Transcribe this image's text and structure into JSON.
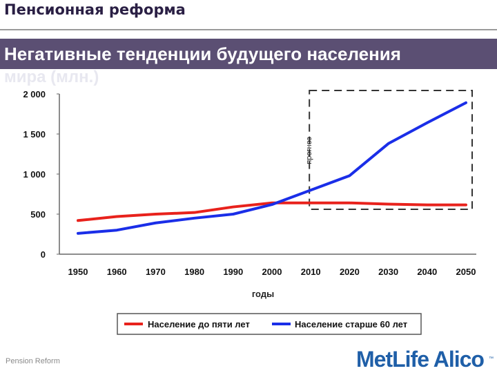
{
  "header": {
    "section_title": "Пенсионная реформа",
    "slide_title": "Негативные тенденции будущего населения",
    "slide_title_line2": "мира (млн.)"
  },
  "footer": {
    "text": "Pension Reform",
    "logo_text": "MetLife Alico",
    "logo_tm": "™"
  },
  "colors": {
    "series_red": "#e8221c",
    "series_blue": "#1a2ee8",
    "title_bar": "#5b4f73",
    "logo": "#1f5fa8"
  },
  "chart_data": {
    "type": "line",
    "xlabel": "годы",
    "ylabel": "",
    "ylim": [
      0,
      2000
    ],
    "xlim": [
      1950,
      2050
    ],
    "yticks": [
      0,
      500,
      1000,
      1500,
      2000
    ],
    "ytick_labels": [
      "0",
      "500",
      "1 000",
      "1 500",
      "2 000"
    ],
    "xticks": [
      1950,
      1960,
      1970,
      1980,
      1990,
      2000,
      2010,
      2020,
      2030,
      2040,
      2050
    ],
    "xtick_labels": [
      "1950",
      "1960",
      "1970",
      "1980",
      "1990",
      "2000",
      "2010",
      "2020",
      "2030",
      "2040",
      "2050"
    ],
    "forecast_label": "прогноз",
    "forecast_range": [
      2010,
      2050
    ],
    "legend_position": "bottom",
    "series": [
      {
        "name": "Население до пяти лет",
        "color": "#e8221c",
        "x": [
          1950,
          1960,
          1970,
          1980,
          1990,
          2000,
          2010,
          2020,
          2030,
          2040,
          2050
        ],
        "y": [
          420,
          470,
          500,
          520,
          590,
          640,
          640,
          640,
          625,
          615,
          615
        ]
      },
      {
        "name": "Население старше 60 лет",
        "color": "#1a2ee8",
        "x": [
          1950,
          1960,
          1970,
          1980,
          1990,
          2000,
          2010,
          2020,
          2030,
          2040,
          2050
        ],
        "y": [
          260,
          300,
          390,
          450,
          500,
          620,
          800,
          980,
          1380,
          1640,
          1890
        ]
      }
    ]
  }
}
